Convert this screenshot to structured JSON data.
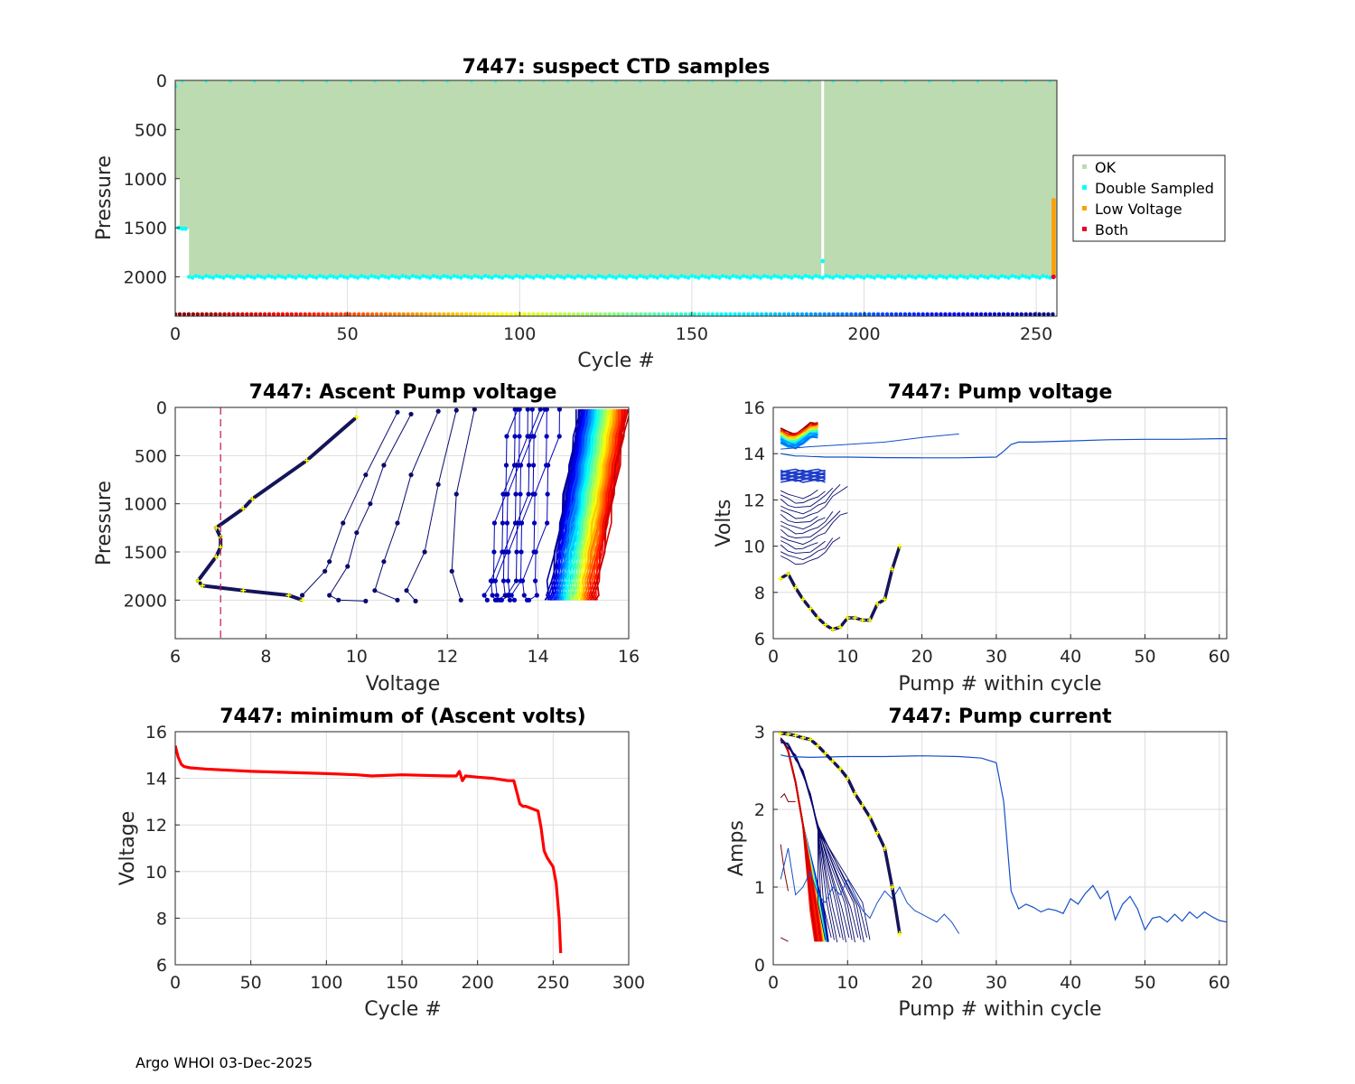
{
  "footer": "Argo WHOI 03-Dec-2025",
  "colors": {
    "ok": "#bcdbb0",
    "double_sampled": "#00ffff",
    "low_voltage": "#ff9f00",
    "both": "#e8002a",
    "min_volt_line": "#ff0000",
    "threshold": "#c0145a",
    "marker_yellow": "#ffff00"
  },
  "chart_data": [
    {
      "id": "suspect",
      "type": "scatter",
      "title": "7447: suspect CTD samples",
      "xlabel": "Cycle #",
      "ylabel": "Pressure",
      "xlim": [
        0,
        256
      ],
      "ylim": [
        2400,
        0
      ],
      "xticks": [
        0,
        50,
        100,
        150,
        200,
        250
      ],
      "yticks": [
        0,
        500,
        1000,
        1500,
        2000
      ],
      "legend": [
        "OK",
        "Double Sampled",
        "Low Voltage",
        "Both"
      ],
      "legend_location": "outside-right",
      "ok_region": {
        "cycles": [
          0,
          256
        ],
        "pressure": [
          0,
          2000
        ],
        "gap_cycle": 188
      },
      "double_sampled_bottom": {
        "cycles": [
          4,
          255
        ],
        "pressure": 2000,
        "outliers": [
          {
            "cycle": 188,
            "pressure": 1840
          }
        ]
      },
      "double_sampled_early": [
        {
          "cycle": 0,
          "pressure": 60
        },
        {
          "cycle": 1,
          "pressure": 1500
        },
        {
          "cycle": 2,
          "pressure": 1510
        },
        {
          "cycle": 3,
          "pressure": 1510
        }
      ],
      "low_voltage": {
        "cycle": 255,
        "pressure": [
          1200,
          2000
        ]
      },
      "both": [
        {
          "cycle": 255,
          "pressure": 2000
        }
      ],
      "cycle_colorbar_pressure": 2380
    },
    {
      "id": "ascent",
      "type": "line",
      "title": "7447: Ascent Pump voltage",
      "xlabel": "Voltage",
      "ylabel": "Pressure",
      "xlim": [
        6,
        16
      ],
      "ylim": [
        2400,
        0
      ],
      "xticks": [
        6,
        8,
        10,
        12,
        14,
        16
      ],
      "yticks": [
        0,
        500,
        1000,
        1500,
        2000
      ],
      "threshold_voltage": 7,
      "last_profile": {
        "volts": [
          10.0,
          8.9,
          7.7,
          7.5,
          6.9,
          7.0,
          7.0,
          6.9,
          6.5,
          6.6,
          7.5,
          8.5,
          8.8
        ],
        "pressure": [
          100,
          550,
          950,
          1050,
          1250,
          1350,
          1450,
          1550,
          1800,
          1850,
          1900,
          1950,
          2000
        ]
      },
      "low_profiles": [
        {
          "volts": [
            10.9,
            10.2,
            9.7,
            9.4,
            9.3,
            8.8
          ],
          "pressure": [
            50,
            700,
            1200,
            1600,
            1700,
            1950
          ]
        },
        {
          "volts": [
            11.2,
            10.6,
            10.3,
            10.0,
            9.8,
            9.4,
            9.6,
            10.2
          ],
          "pressure": [
            70,
            600,
            1000,
            1300,
            1650,
            1950,
            2000,
            2010
          ]
        },
        {
          "volts": [
            11.8,
            11.2,
            10.9,
            10.6,
            10.4,
            10.9
          ],
          "pressure": [
            40,
            700,
            1200,
            1600,
            1900,
            2000
          ]
        },
        {
          "volts": [
            12.2,
            11.8,
            11.5,
            11.1,
            11.3
          ],
          "pressure": [
            30,
            800,
            1500,
            1900,
            2010
          ]
        },
        {
          "volts": [
            12.6,
            12.2,
            12.1,
            12.3
          ],
          "pressure": [
            20,
            900,
            1700,
            2000
          ]
        }
      ]
    },
    {
      "id": "pumpvolt",
      "type": "line",
      "title": "7447: Pump voltage",
      "xlabel": "Pump # within cycle",
      "ylabel": "Volts",
      "xlim": [
        0,
        61
      ],
      "ylim": [
        6,
        16
      ],
      "xticks": [
        0,
        10,
        20,
        30,
        40,
        50,
        60
      ],
      "yticks": [
        6,
        8,
        10,
        12,
        14,
        16
      ],
      "long_series": {
        "pumps": [
          1,
          2,
          3,
          4,
          5,
          6,
          7,
          8,
          10,
          15,
          20,
          25,
          30,
          31,
          32,
          33,
          35,
          40,
          45,
          50,
          55,
          60,
          61
        ],
        "volts": [
          14.0,
          13.95,
          13.9,
          13.9,
          13.88,
          13.87,
          13.85,
          13.85,
          13.85,
          13.83,
          13.82,
          13.82,
          13.85,
          14.1,
          14.4,
          14.5,
          14.5,
          14.55,
          14.6,
          14.62,
          14.62,
          14.65,
          14.65
        ]
      },
      "medium_series": {
        "pumps": [
          1,
          5,
          10,
          15,
          20,
          25
        ],
        "volts": [
          14.2,
          14.3,
          14.4,
          14.5,
          14.7,
          14.85
        ]
      },
      "last_cycle": {
        "pumps": [
          1,
          2,
          3,
          4,
          5,
          6,
          7,
          8,
          9,
          10,
          11,
          12,
          13,
          14,
          15,
          16,
          17
        ],
        "volts": [
          8.6,
          8.8,
          8.2,
          7.7,
          7.3,
          6.9,
          6.6,
          6.4,
          6.5,
          6.9,
          6.9,
          6.8,
          6.8,
          7.5,
          7.7,
          9.0,
          10.0
        ]
      }
    },
    {
      "id": "minvolt",
      "type": "line",
      "title": "7447: minimum of (Ascent volts)",
      "xlabel": "Cycle #",
      "ylabel": "Voltage",
      "xlim": [
        0,
        300
      ],
      "ylim": [
        6,
        16
      ],
      "xticks": [
        0,
        50,
        100,
        150,
        200,
        250,
        300
      ],
      "yticks": [
        6,
        8,
        10,
        12,
        14,
        16
      ],
      "x": [
        0,
        2,
        4,
        6,
        10,
        20,
        50,
        100,
        120,
        130,
        150,
        180,
        186,
        188,
        190,
        192,
        200,
        210,
        220,
        224,
        226,
        228,
        230,
        232,
        240,
        242,
        244,
        246,
        250,
        252,
        254,
        255
      ],
      "y": [
        15.4,
        14.9,
        14.6,
        14.5,
        14.45,
        14.4,
        14.3,
        14.2,
        14.15,
        14.1,
        14.15,
        14.1,
        14.1,
        14.3,
        13.9,
        14.1,
        14.05,
        14.0,
        13.9,
        13.9,
        13.4,
        12.9,
        12.8,
        12.8,
        12.6,
        11.9,
        10.9,
        10.6,
        10.2,
        9.5,
        8.0,
        6.5
      ]
    },
    {
      "id": "pumpcurrent",
      "type": "line",
      "title": "7447: Pump current",
      "xlabel": "Pump # within cycle",
      "ylabel": "Amps",
      "xlim": [
        0,
        61
      ],
      "ylim": [
        0,
        3
      ],
      "xticks": [
        0,
        10,
        20,
        30,
        40,
        50,
        60
      ],
      "yticks": [
        0,
        1,
        2,
        3
      ],
      "long_series": {
        "pumps": [
          1,
          2,
          5,
          10,
          15,
          20,
          25,
          28,
          30,
          31,
          32,
          33,
          34,
          35,
          36,
          37,
          38,
          39,
          40,
          41,
          42,
          43,
          44,
          45,
          46,
          47,
          48,
          49,
          50,
          51,
          52,
          53,
          54,
          55,
          56,
          57,
          58,
          59,
          60,
          61
        ],
        "amps": [
          2.7,
          2.68,
          2.67,
          2.68,
          2.68,
          2.69,
          2.68,
          2.66,
          2.6,
          2.1,
          0.95,
          0.72,
          0.78,
          0.74,
          0.68,
          0.72,
          0.7,
          0.66,
          0.85,
          0.78,
          0.92,
          1.02,
          0.85,
          0.95,
          0.58,
          0.78,
          0.88,
          0.72,
          0.45,
          0.6,
          0.62,
          0.55,
          0.65,
          0.56,
          0.68,
          0.6,
          0.68,
          0.62,
          0.57,
          0.55
        ]
      },
      "medium_series": {
        "pumps": [
          1,
          2,
          3,
          4,
          5,
          6,
          7,
          8,
          9,
          10,
          11,
          12,
          13,
          14,
          15,
          16,
          17,
          18,
          19,
          20,
          21,
          22,
          23,
          24,
          25
        ],
        "amps": [
          1.1,
          1.5,
          0.9,
          1.0,
          1.2,
          0.9,
          0.8,
          1.0,
          0.9,
          1.1,
          0.9,
          0.7,
          0.6,
          0.8,
          0.95,
          0.85,
          1.0,
          0.8,
          0.7,
          0.65,
          0.6,
          0.55,
          0.65,
          0.55,
          0.4
        ]
      },
      "last_cycle": {
        "pumps": [
          1,
          2,
          3,
          4,
          5,
          6,
          7,
          8,
          9,
          10,
          11,
          12,
          13,
          14,
          15,
          16,
          17
        ],
        "amps": [
          2.98,
          2.97,
          2.95,
          2.92,
          2.9,
          2.82,
          2.72,
          2.62,
          2.52,
          2.4,
          2.2,
          2.05,
          1.9,
          1.7,
          1.5,
          1.0,
          0.4
        ]
      }
    }
  ]
}
